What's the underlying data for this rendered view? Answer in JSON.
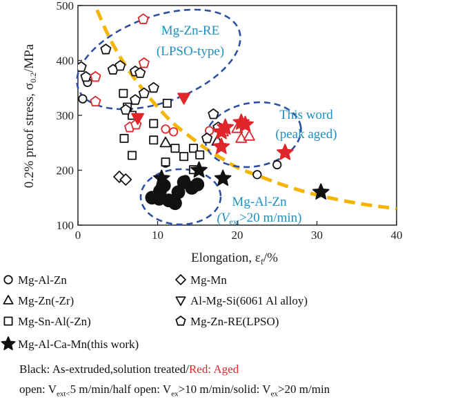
{
  "chart_data": {
    "type": "scatter",
    "xlabel": "Elongation, ε",
    "xlabel_sub": "f",
    "xlabel_unit": "/%",
    "ylabel": "0.2% proof stress, σ",
    "ylabel_sub": "0.2",
    "ylabel_unit": "/MPa",
    "xlim": [
      0,
      40
    ],
    "ylim": [
      100,
      500
    ],
    "xticks": [
      0,
      10,
      20,
      30,
      40
    ],
    "yticks": [
      100,
      200,
      300,
      400,
      500
    ],
    "grid": false,
    "legend_position": "bottom",
    "colors": {
      "black": "#111111",
      "red": "#e0262a",
      "ellipse": "#2a4fa3",
      "trend": "#f5b400",
      "annotation": "#1d8fc2"
    },
    "series": [
      {
        "name": "Mg-Al-Zn",
        "marker": "circle",
        "points": [
          [
            0.6,
            330,
            "black",
            "open"
          ],
          [
            1.2,
            360,
            "black",
            "open"
          ],
          [
            11,
            275,
            "red",
            "open"
          ],
          [
            11,
            213,
            "black",
            "open"
          ],
          [
            12,
            270,
            "red",
            "open"
          ],
          [
            16.5,
            272,
            "red",
            "open"
          ],
          [
            25,
            210,
            "black",
            "open"
          ],
          [
            22.5,
            192,
            "black",
            "open"
          ],
          [
            13.5,
            183,
            "black",
            "open"
          ],
          [
            9.3,
            150,
            "black",
            "solid"
          ],
          [
            10.3,
            162,
            "black",
            "solid"
          ],
          [
            10.8,
            172,
            "black",
            "solid"
          ],
          [
            11.4,
            145,
            "black",
            "solid"
          ],
          [
            12.2,
            140,
            "black",
            "solid"
          ],
          [
            13.3,
            178,
            "black",
            "solid"
          ],
          [
            14.3,
            168,
            "black",
            "solid"
          ],
          [
            15.0,
            174,
            "black",
            "solid"
          ],
          [
            12.6,
            160,
            "black",
            "solid"
          ],
          [
            10.2,
            148,
            "black",
            "solid"
          ]
        ]
      },
      {
        "name": "Mg-Zn(-Zr)",
        "marker": "triangle",
        "points": [
          [
            11,
            250,
            "black",
            "open"
          ],
          [
            17.5,
            253,
            "black",
            "open"
          ],
          [
            20.5,
            258,
            "red",
            "open"
          ],
          [
            21.5,
            262,
            "red",
            "open"
          ],
          [
            18.2,
            270,
            "red",
            "open"
          ],
          [
            20.0,
            276,
            "red",
            "open"
          ]
        ]
      },
      {
        "name": "Mg-Sn-Al(-Zn)",
        "marker": "square",
        "points": [
          [
            5.7,
            340,
            "black",
            "open"
          ],
          [
            6.2,
            315,
            "black",
            "open"
          ],
          [
            5.8,
            258,
            "black",
            "open"
          ],
          [
            6.8,
            300,
            "black",
            "open"
          ],
          [
            9.5,
            285,
            "black",
            "open"
          ],
          [
            9.5,
            255,
            "black",
            "open"
          ],
          [
            11.2,
            322,
            "black",
            "open"
          ],
          [
            11,
            215,
            "black",
            "open"
          ],
          [
            12.2,
            240,
            "black",
            "open"
          ],
          [
            13.3,
            225,
            "black",
            "open"
          ],
          [
            14.5,
            240,
            "black",
            "open"
          ],
          [
            15.3,
            228,
            "black",
            "open"
          ],
          [
            14.5,
            201,
            "black",
            "open"
          ],
          [
            6.8,
            227,
            "black",
            "open"
          ]
        ]
      },
      {
        "name": "Mg-Zn-RE(LPSO)",
        "marker": "pentagon",
        "points": [
          [
            3.5,
            420,
            "black",
            "open"
          ],
          [
            0.4,
            388,
            "black",
            "open"
          ],
          [
            1,
            370,
            "black",
            "open"
          ],
          [
            4.4,
            383,
            "black",
            "open"
          ],
          [
            5.3,
            390,
            "black",
            "open"
          ],
          [
            7.2,
            380,
            "black",
            "open"
          ],
          [
            7.8,
            377,
            "black",
            "open"
          ],
          [
            8.3,
            340,
            "black",
            "open"
          ],
          [
            7.2,
            328,
            "black",
            "open"
          ],
          [
            6.0,
            310,
            "black",
            "open"
          ],
          [
            9.5,
            350,
            "black",
            "open"
          ],
          [
            17,
            302,
            "black",
            "open"
          ],
          [
            17.6,
            278,
            "black",
            "open"
          ],
          [
            16.2,
            258,
            "black",
            "open"
          ],
          [
            8.2,
            475,
            "red",
            "open"
          ],
          [
            2.2,
            370,
            "red",
            "open"
          ],
          [
            2.2,
            325,
            "red",
            "open"
          ],
          [
            8.3,
            395,
            "red",
            "open"
          ],
          [
            6.5,
            278,
            "red",
            "open"
          ],
          [
            7.3,
            283,
            "red",
            "open"
          ]
        ]
      },
      {
        "name": "Mg-Mn",
        "marker": "diamond",
        "points": [
          [
            5.2,
            188,
            "black",
            "open"
          ],
          [
            6,
            183,
            "black",
            "open"
          ]
        ]
      },
      {
        "name": "Al-Mg-Si(6061 Al alloy)",
        "marker": "triangle-down",
        "points": [
          [
            13.3,
            332,
            "red",
            "solid"
          ],
          [
            7.5,
            295,
            "red",
            "solid"
          ]
        ]
      },
      {
        "name": "Mg-Al-Ca-Mn(this work)",
        "marker": "star",
        "points": [
          [
            18.0,
            270,
            "red",
            "solid"
          ],
          [
            18.5,
            278,
            "red",
            "solid"
          ],
          [
            20.5,
            287,
            "red",
            "solid"
          ],
          [
            21.0,
            283,
            "red",
            "solid"
          ],
          [
            18.0,
            243,
            "red",
            "solid"
          ],
          [
            26,
            232,
            "red",
            "solid"
          ],
          [
            18.2,
            185,
            "black",
            "solid"
          ],
          [
            30.5,
            160,
            "black",
            "solid"
          ],
          [
            15.2,
            200,
            "black",
            "solid"
          ],
          [
            10.5,
            185,
            "black",
            "solid"
          ]
        ]
      }
    ],
    "annotations": [
      {
        "id": "lpso",
        "lines": [
          "Mg-Zn-RE",
          "(LPSO-type)"
        ]
      },
      {
        "id": "thiswork",
        "lines": [
          "This word",
          "(peak aged)"
        ]
      },
      {
        "id": "agz",
        "line1": "Mg-Al-Zn",
        "line2_open": "(V",
        "line2_sub": "ext",
        "line2_rest": ">20 m/min)"
      }
    ],
    "trend_curve": [
      [
        2.4,
        492
      ],
      [
        4,
        440
      ],
      [
        6,
        390
      ],
      [
        8,
        350
      ],
      [
        10,
        315
      ],
      [
        12,
        285
      ],
      [
        14,
        262
      ],
      [
        16,
        240
      ],
      [
        18,
        222
      ],
      [
        20,
        205
      ],
      [
        23,
        188
      ],
      [
        26,
        172
      ],
      [
        30,
        155
      ],
      [
        35,
        140
      ],
      [
        40,
        130
      ]
    ]
  },
  "notes": {
    "black_text": "Black: As-extruded,solution treated/",
    "red_text": "Red: Aged",
    "open_prefix": "open: V",
    "open_sub": "ext<",
    "open_rest": "5 m/min/half open: V",
    "half_sub": "ex",
    "half_rest": ">10 m/min/solid: V",
    "solid_sub": "ex",
    "solid_rest": ">20 m/min"
  }
}
